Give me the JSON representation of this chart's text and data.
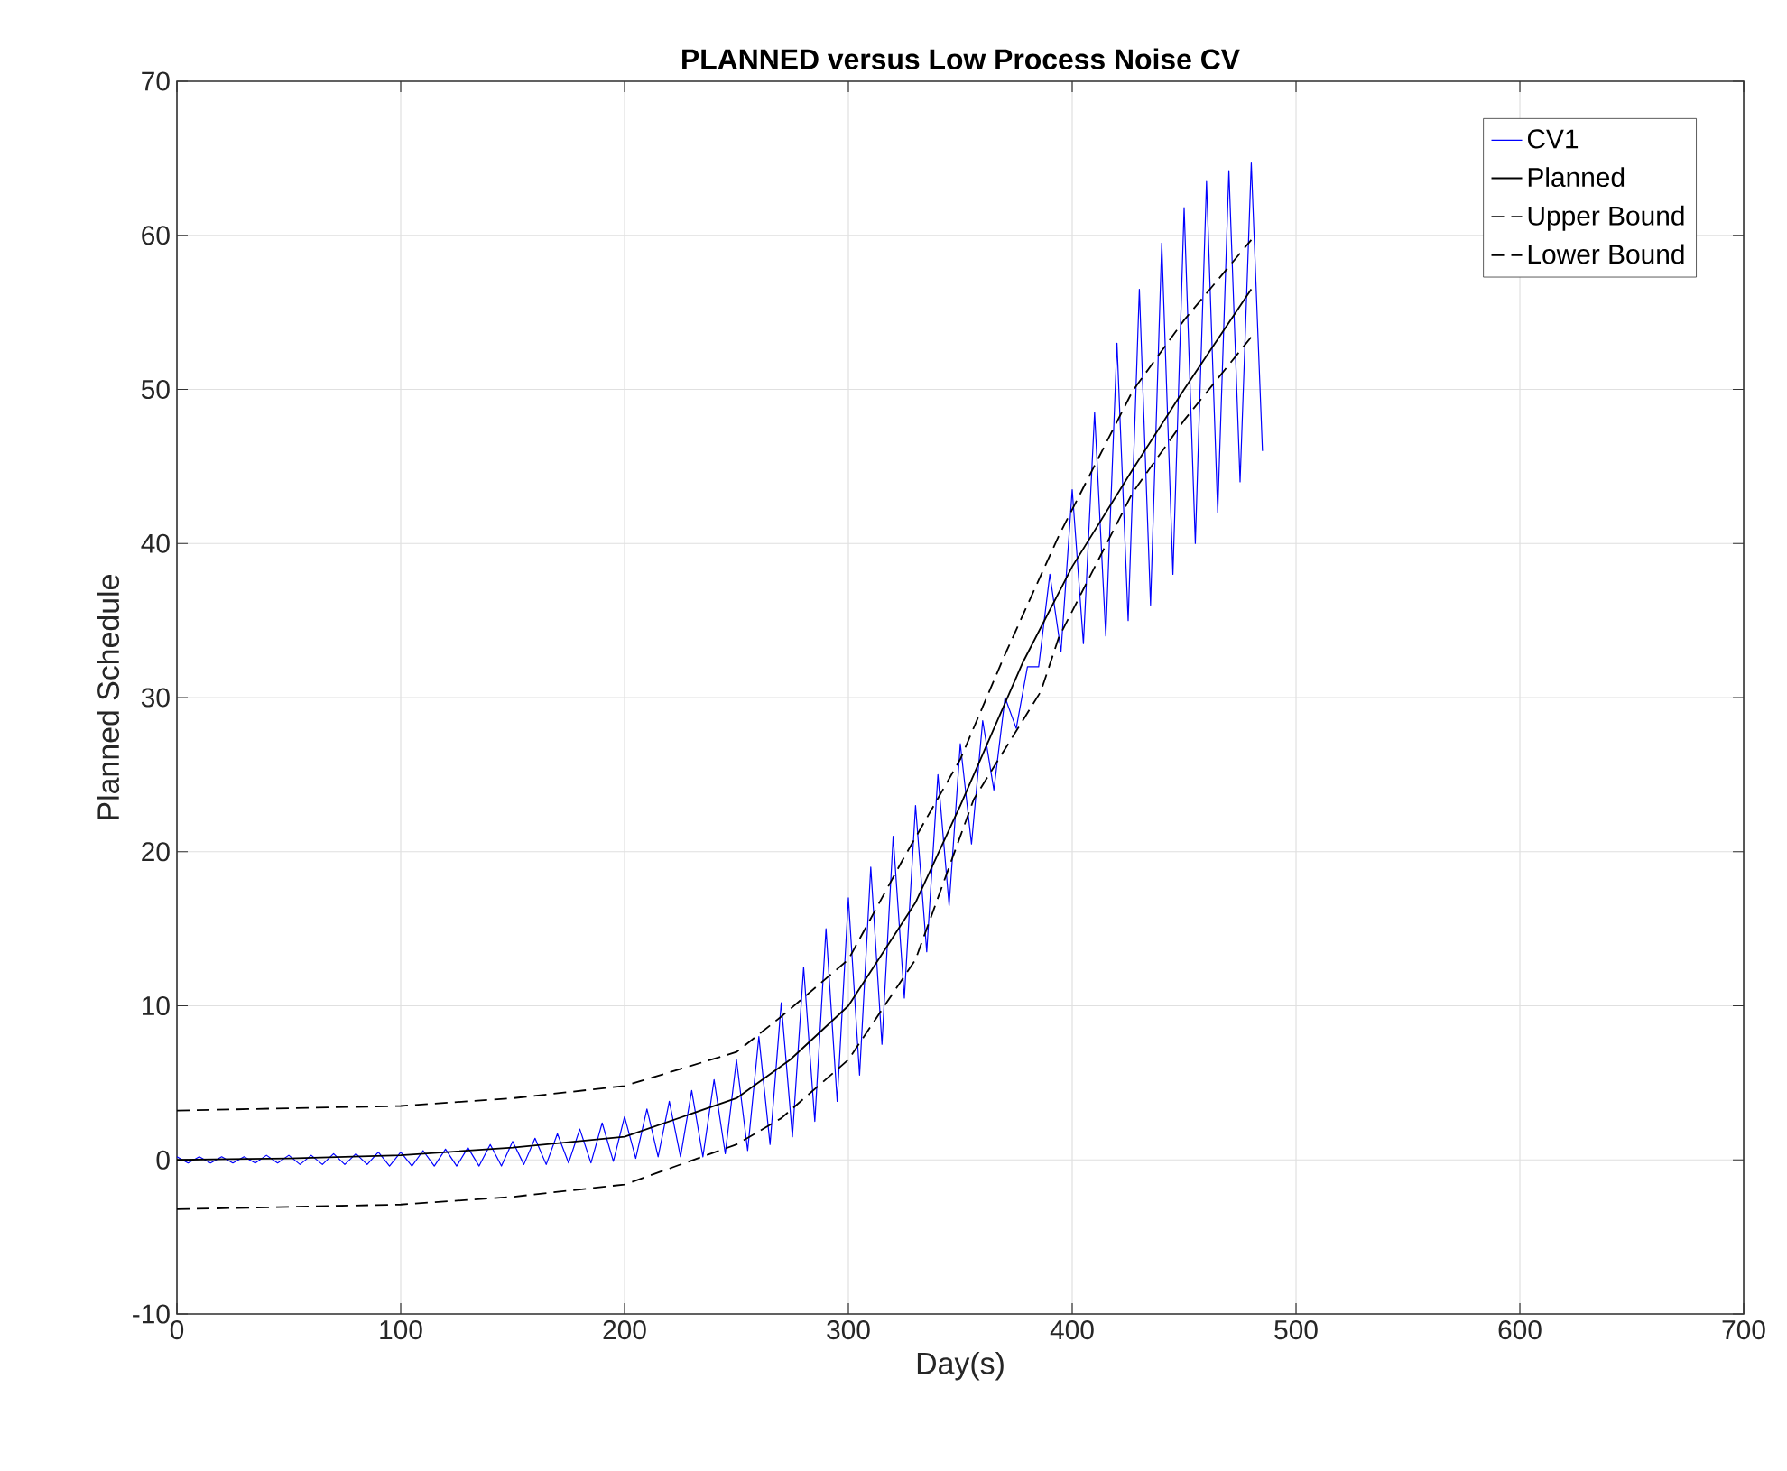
{
  "chart_data": {
    "type": "line",
    "title": "PLANNED versus Low Process Noise CV",
    "xlabel": "Day(s)",
    "ylabel": "Planned Schedule",
    "xlim": [
      0,
      700
    ],
    "ylim": [
      -10,
      70
    ],
    "xticks": [
      0,
      100,
      200,
      300,
      400,
      500,
      600,
      700
    ],
    "yticks": [
      -10,
      0,
      10,
      20,
      30,
      40,
      50,
      60,
      70
    ],
    "grid": true,
    "legend": "top right",
    "marker": "none",
    "series": [
      {
        "name": "CV1",
        "color": "#0000ff",
        "line_style": "solid",
        "x": [
          0,
          5,
          10,
          15,
          20,
          25,
          30,
          35,
          40,
          45,
          50,
          55,
          60,
          65,
          70,
          75,
          80,
          85,
          90,
          95,
          100,
          105,
          110,
          115,
          120,
          125,
          130,
          135,
          140,
          145,
          150,
          155,
          160,
          165,
          170,
          175,
          180,
          185,
          190,
          195,
          200,
          205,
          210,
          215,
          220,
          225,
          230,
          235,
          240,
          245,
          250,
          255,
          260,
          265,
          270,
          275,
          280,
          285,
          290,
          295,
          300,
          305,
          310,
          315,
          320,
          325,
          330,
          335,
          340,
          345,
          350,
          355,
          360,
          365,
          370,
          375,
          380,
          385,
          390,
          395,
          400,
          405,
          410,
          415,
          420,
          425,
          430,
          435,
          440,
          445,
          450,
          455,
          460,
          465,
          470,
          475,
          480,
          485
        ],
        "values": [
          0.2,
          -0.2,
          0.2,
          -0.2,
          0.2,
          -0.2,
          0.2,
          -0.2,
          0.3,
          -0.2,
          0.3,
          -0.3,
          0.3,
          -0.3,
          0.4,
          -0.3,
          0.4,
          -0.3,
          0.5,
          -0.4,
          0.5,
          -0.4,
          0.6,
          -0.4,
          0.7,
          -0.4,
          0.8,
          -0.4,
          1.0,
          -0.4,
          1.2,
          -0.3,
          1.4,
          -0.3,
          1.7,
          -0.2,
          2.0,
          -0.2,
          2.4,
          -0.1,
          2.8,
          0.1,
          3.3,
          0.2,
          3.8,
          0.2,
          4.5,
          0.2,
          5.2,
          0.4,
          6.5,
          0.6,
          8.0,
          1.0,
          10.2,
          1.5,
          12.5,
          2.5,
          15,
          3.8,
          17,
          5.5,
          19,
          7.5,
          21,
          10.5,
          23,
          13.5,
          25,
          16.5,
          27,
          20.5,
          28.5,
          24,
          30,
          28,
          32,
          32,
          38,
          33,
          43.5,
          33.5,
          48.5,
          34,
          53,
          35,
          56.5,
          36,
          59.5,
          38,
          61.8,
          40,
          63.5,
          42,
          64.2,
          44,
          64.7,
          46
        ]
      },
      {
        "name": "Planned",
        "color": "#000000",
        "line_style": "solid",
        "x": [
          0,
          50,
          100,
          150,
          200,
          250,
          274,
          300,
          330,
          350,
          378,
          400,
          427,
          450,
          480
        ],
        "values": [
          0,
          0.1,
          0.3,
          0.8,
          1.5,
          4,
          6.5,
          10,
          16.7,
          23,
          32.3,
          38.5,
          44.8,
          50,
          56.5
        ]
      },
      {
        "name": "Upper Bound",
        "color": "#000000",
        "line_style": "dashed",
        "x": [
          0,
          100,
          150,
          200,
          250,
          270,
          300,
          324,
          350,
          370,
          394,
          427,
          450,
          480
        ],
        "values": [
          3.2,
          3.5,
          4,
          4.8,
          7,
          9.3,
          13,
          19.4,
          26,
          32.8,
          40.5,
          49.9,
          54.5,
          59.7
        ]
      },
      {
        "name": "Lower Bound",
        "color": "#000000",
        "line_style": "dashed",
        "x": [
          0,
          100,
          150,
          200,
          250,
          270,
          300,
          330,
          356,
          386,
          394,
          427,
          450,
          480
        ],
        "values": [
          -3.2,
          -2.9,
          -2.4,
          -1.6,
          1,
          2.7,
          6.5,
          13,
          23.4,
          30.4,
          33.9,
          43.3,
          48,
          53.4
        ]
      }
    ]
  }
}
